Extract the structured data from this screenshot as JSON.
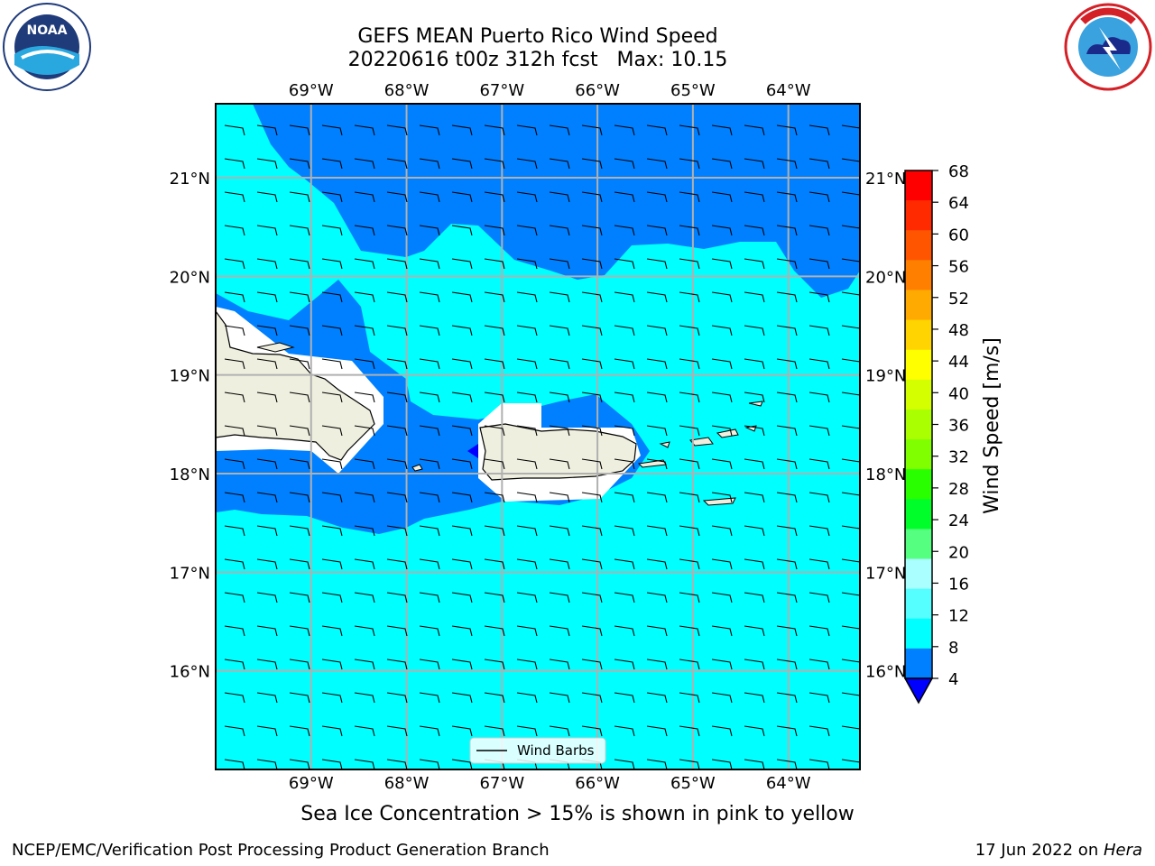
{
  "title_line1": "GEFS MEAN Puerto Rico Wind Speed",
  "title_line2": "20220616 t00z 312h fcst   Max: 10.15",
  "x_ticks": [
    "69°W",
    "68°W",
    "67°W",
    "66°W",
    "65°W",
    "64°W"
  ],
  "y_ticks": [
    "21°N",
    "20°N",
    "19°N",
    "18°N",
    "17°N",
    "16°N"
  ],
  "legend_label": "Wind Barbs",
  "colorbar": {
    "label": "Wind Speed [m/s]",
    "ticks": [
      "68",
      "64",
      "60",
      "56",
      "52",
      "48",
      "44",
      "40",
      "36",
      "32",
      "28",
      "24",
      "20",
      "16",
      "12",
      "8",
      "4"
    ],
    "colors": [
      "#ff0000",
      "#ff2a00",
      "#ff5500",
      "#ff8000",
      "#ffaa00",
      "#ffd400",
      "#ffff00",
      "#d4ff00",
      "#aaff00",
      "#80ff00",
      "#2aff00",
      "#00ff2a",
      "#55ff80",
      "#aaffff",
      "#55ffff",
      "#00ffff",
      "#0080ff"
    ],
    "under_color": "#0000ff"
  },
  "note": "Sea Ice Concentration > 15% is shown in pink to yellow",
  "footer_left": "NCEP/EMC/Verification Post Processing Product Generation Branch",
  "footer_right_date": "17 Jun 2022 on ",
  "footer_right_machine": "Hera",
  "colors": {
    "sea_light": "#00ffff",
    "sea_dark": "#0080ff",
    "land": "#efefdf",
    "grid": "#b0b0b0"
  },
  "logos": {
    "left": "noaa-logo",
    "right": "nws-logo"
  },
  "map_data": {
    "lon_range": [
      -70.0,
      -63.25
    ],
    "lat_range": [
      15.0,
      21.75
    ],
    "wind_speed_max": 10.15,
    "wind_barb_pattern": "uniform easterly barbs, 5 m/s flag"
  }
}
